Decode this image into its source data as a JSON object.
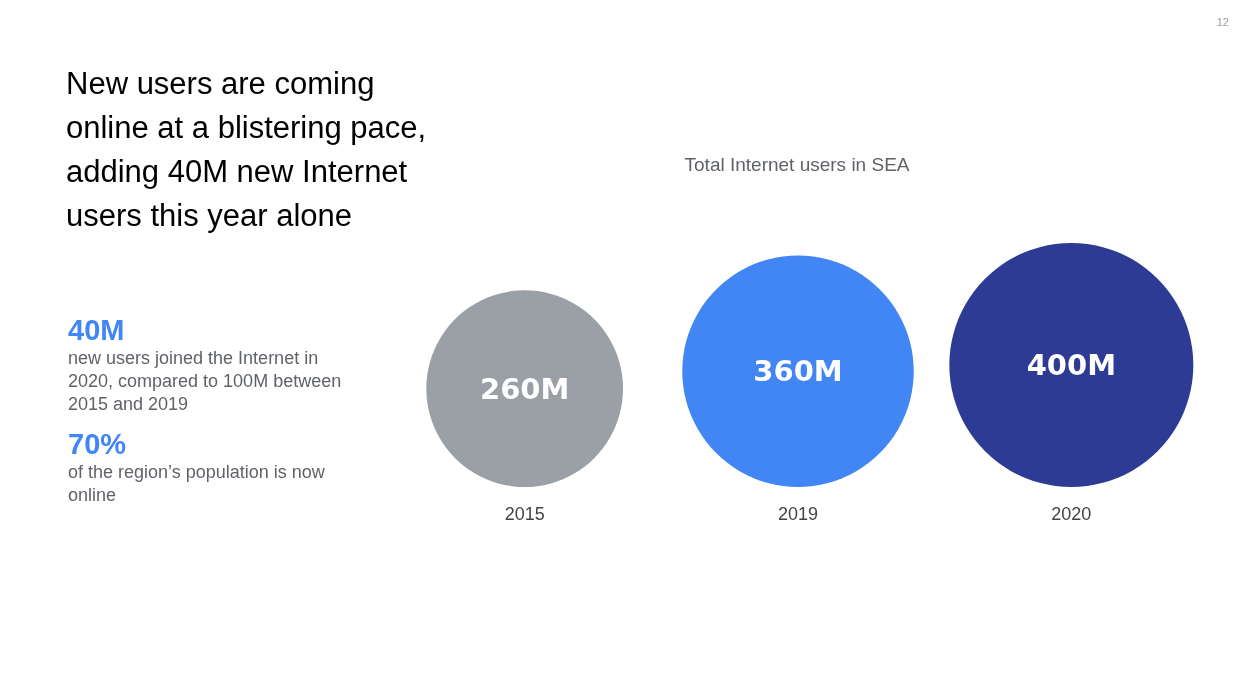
{
  "chart_data": {
    "type": "other",
    "title": "New users are coming online at a blistering pace, adding 40M new Internet users this year alone",
    "subtitle": "Total Internet users in SEA",
    "categories": [
      "2015",
      "2019",
      "2020"
    ],
    "values": [
      260,
      360,
      400
    ],
    "value_labels": [
      "260M",
      "360M",
      "400M"
    ],
    "colors": [
      "#9aa0a6",
      "#4285f4",
      "#2d3b94"
    ],
    "annotations": [
      "40M",
      "new users joined the Internet in 2020, compared to 100M between 2015 and 2019",
      "70%",
      "of the region’s population is now online",
      "12"
    ]
  }
}
